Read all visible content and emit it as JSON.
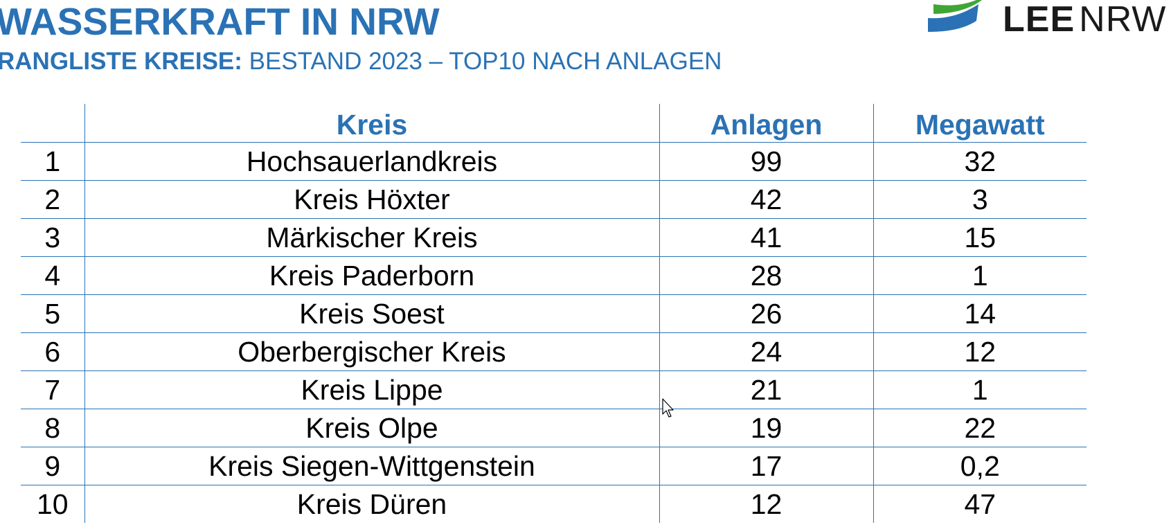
{
  "header": {
    "title": "WASSERKRAFT IN NRW",
    "subtitle_bold": "RANGLISTE KREISE:",
    "subtitle_rest": " BESTAND 2023 – TOP10 NACH ANLAGEN"
  },
  "logo": {
    "part1": "LEE",
    "part2": "NRW",
    "colors": {
      "green": "#3fa535",
      "blue": "#2a72b5"
    }
  },
  "table": {
    "columns": [
      "",
      "Kreis",
      "Anlagen",
      "Megawatt"
    ],
    "rows": [
      {
        "rank": "1",
        "kreis": "Hochsauerlandkreis",
        "anlagen": "99",
        "megawatt": "32"
      },
      {
        "rank": "2",
        "kreis": "Kreis Höxter",
        "anlagen": "42",
        "megawatt": "3"
      },
      {
        "rank": "3",
        "kreis": "Märkischer Kreis",
        "anlagen": "41",
        "megawatt": "15"
      },
      {
        "rank": "4",
        "kreis": "Kreis Paderborn",
        "anlagen": "28",
        "megawatt": "1"
      },
      {
        "rank": "5",
        "kreis": "Kreis Soest",
        "anlagen": "26",
        "megawatt": "14"
      },
      {
        "rank": "6",
        "kreis": "Oberbergischer Kreis",
        "anlagen": "24",
        "megawatt": "12"
      },
      {
        "rank": "7",
        "kreis": "Kreis Lippe",
        "anlagen": "21",
        "megawatt": "1"
      },
      {
        "rank": "8",
        "kreis": "Kreis Olpe",
        "anlagen": "19",
        "megawatt": "22"
      },
      {
        "rank": "9",
        "kreis": "Kreis Siegen-Wittgenstein",
        "anlagen": "17",
        "megawatt": "0,2"
      },
      {
        "rank": "10",
        "kreis": "Kreis Düren",
        "anlagen": "12",
        "megawatt": "47"
      }
    ]
  },
  "colors": {
    "accent": "#2a72b5",
    "text": "#000000"
  },
  "icons": {
    "cursor": "mouse-pointer-icon"
  }
}
